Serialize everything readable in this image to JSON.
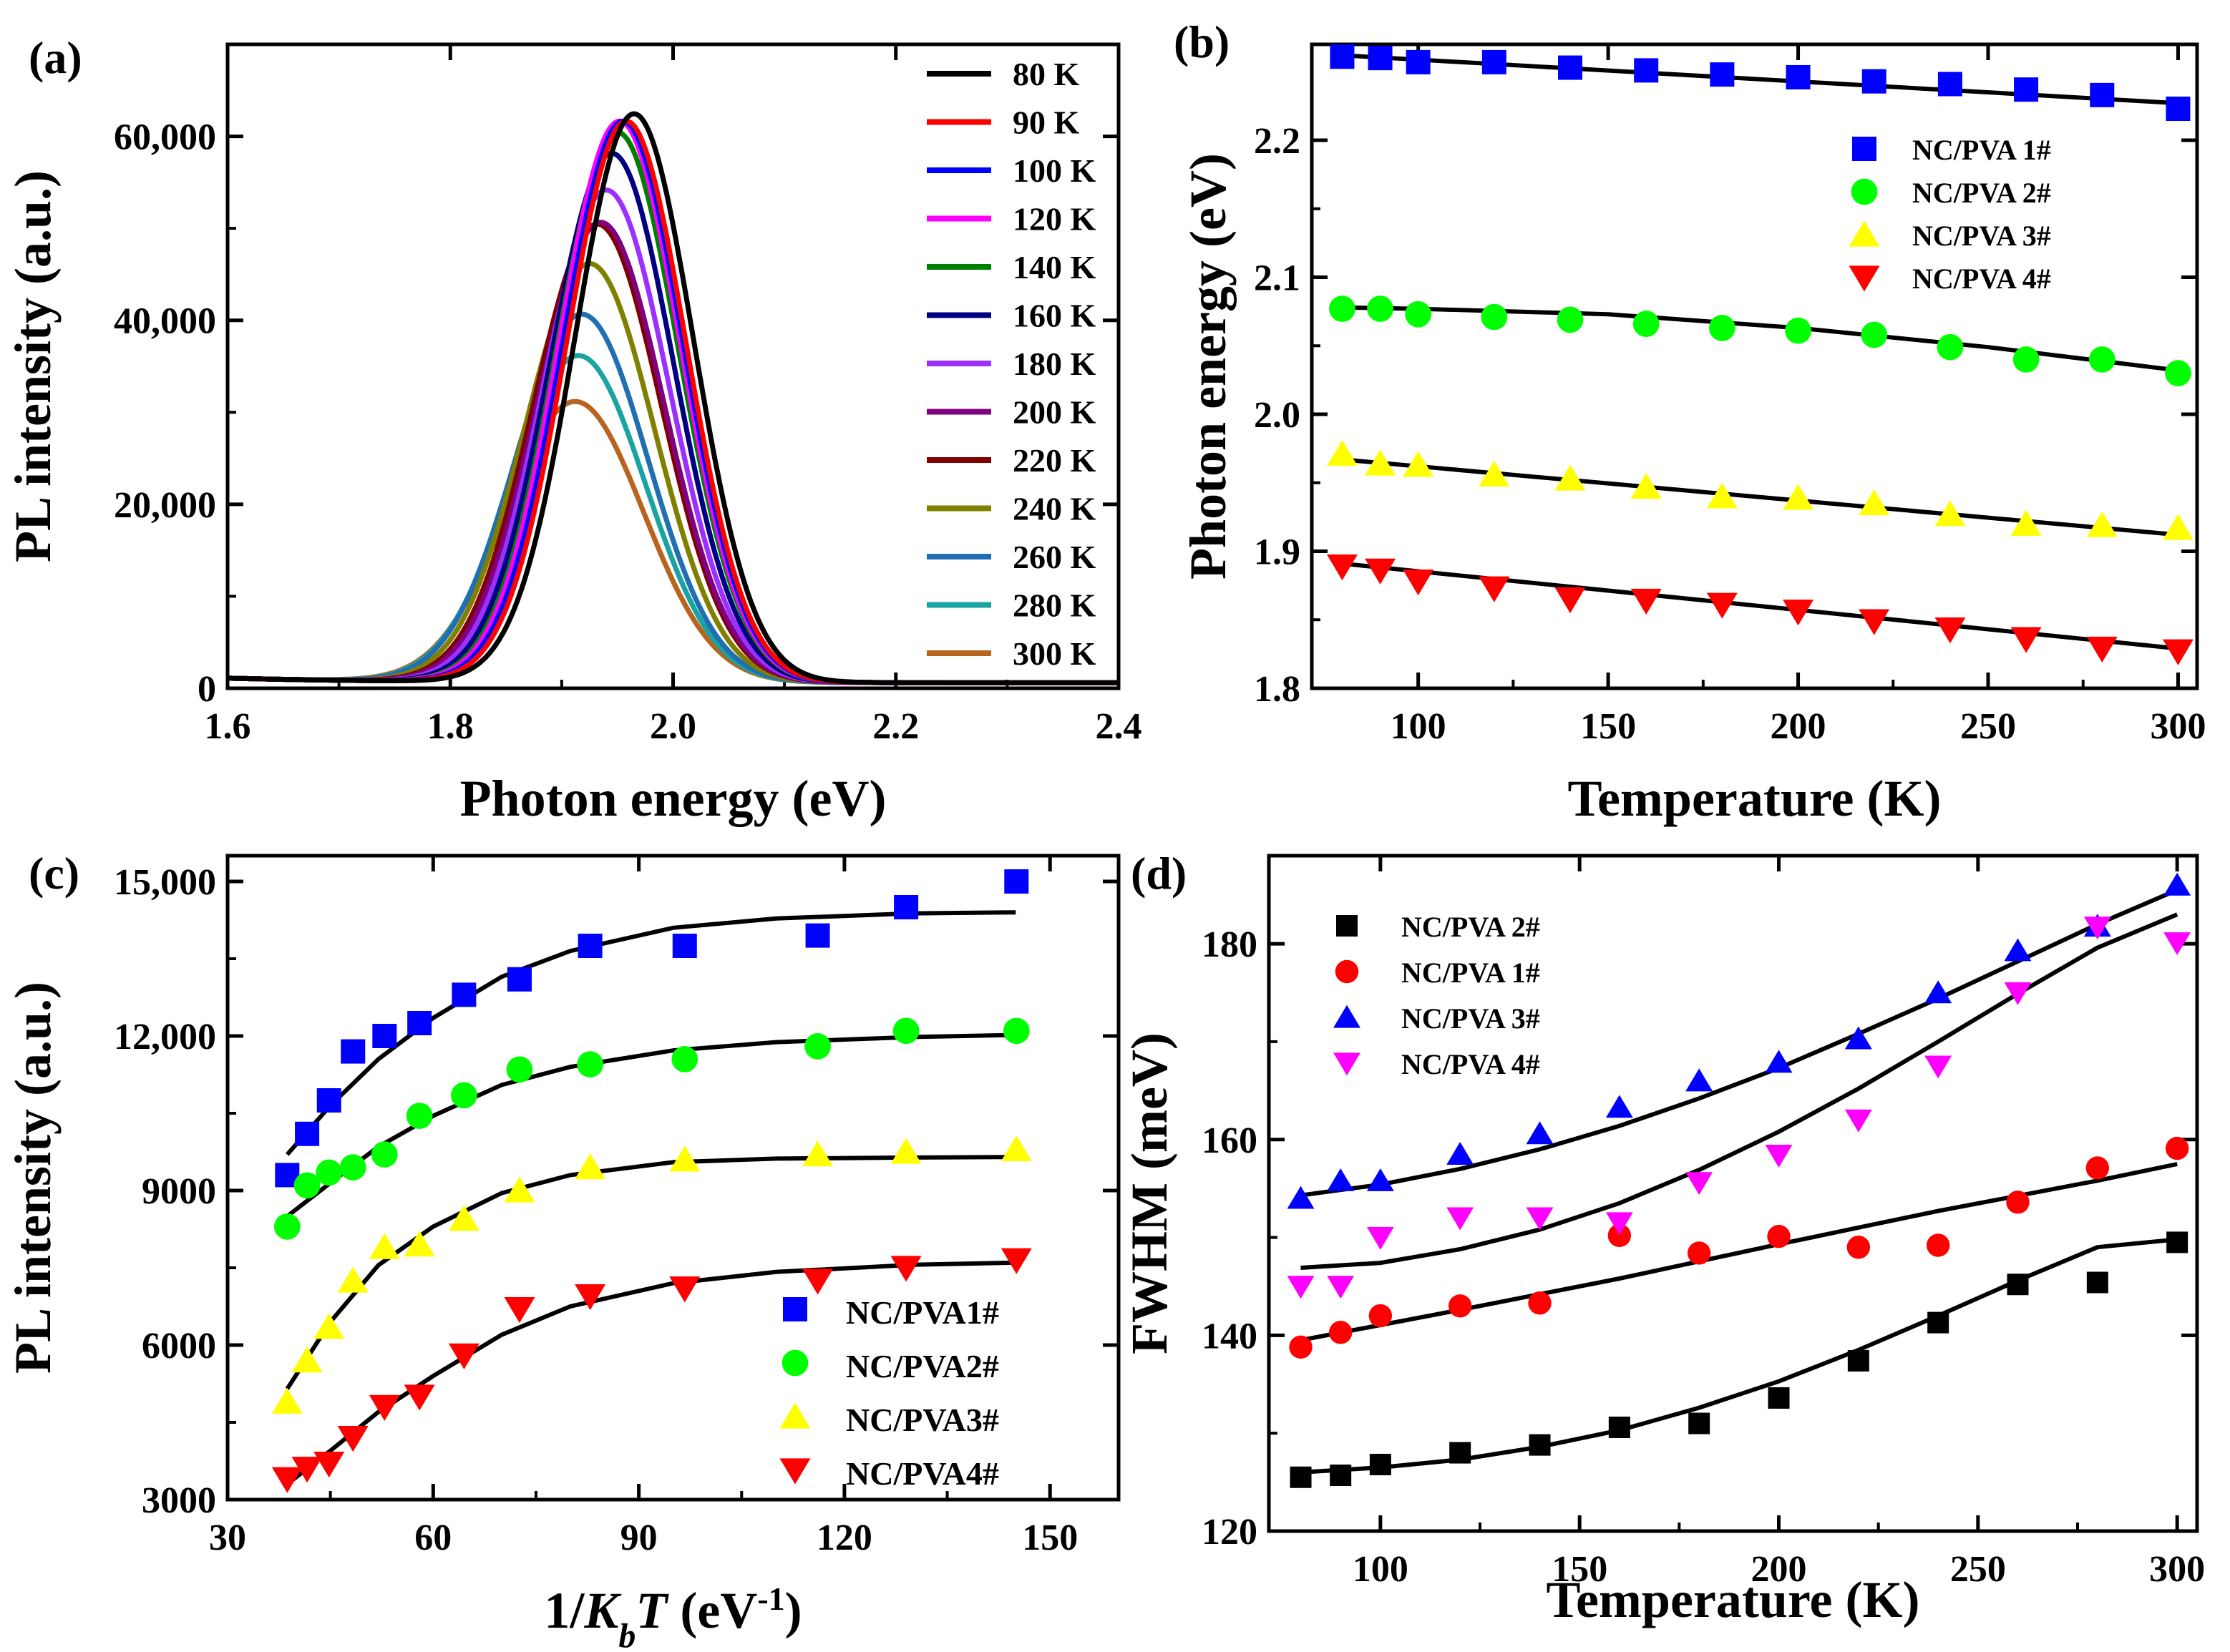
{
  "chart_data": [
    {
      "panel_label": "(a)",
      "type": "line",
      "xlabel": "Photon energy (eV)",
      "ylabel": "PL intensity (a.u.)",
      "xlim": [
        1.6,
        2.4
      ],
      "ylim": [
        0,
        70000
      ],
      "xticks": [
        1.6,
        1.8,
        2.0,
        2.2,
        2.4
      ],
      "xtick_labels": [
        "1.6",
        "1.8",
        "2.0",
        "2.2",
        "2.4"
      ],
      "yticks": [
        0,
        20000,
        40000,
        60000
      ],
      "ytick_labels": [
        "0",
        "20,000",
        "40,000",
        "60,000"
      ],
      "legend_position": "top-right",
      "series": [
        {
          "name": "80 K",
          "color": "#000000",
          "peak_energy": 1.965,
          "peak_intensity": 61800,
          "fwhm": 0.125
        },
        {
          "name": "90 K",
          "color": "#ff0000",
          "peak_energy": 1.958,
          "peak_intensity": 61000,
          "fwhm": 0.126
        },
        {
          "name": "100 K",
          "color": "#0000ff",
          "peak_energy": 1.955,
          "peak_intensity": 61000,
          "fwhm": 0.127
        },
        {
          "name": "120 K",
          "color": "#ff00ff",
          "peak_energy": 1.952,
          "peak_intensity": 61000,
          "fwhm": 0.128
        },
        {
          "name": "140 K",
          "color": "#008000",
          "peak_energy": 1.95,
          "peak_intensity": 59800,
          "fwhm": 0.129
        },
        {
          "name": "160 K",
          "color": "#000080",
          "peak_energy": 1.945,
          "peak_intensity": 57500,
          "fwhm": 0.13
        },
        {
          "name": "180 K",
          "color": "#9b30ff",
          "peak_energy": 1.94,
          "peak_intensity": 53500,
          "fwhm": 0.132
        },
        {
          "name": "200 K",
          "color": "#800080",
          "peak_energy": 1.935,
          "peak_intensity": 50000,
          "fwhm": 0.134
        },
        {
          "name": "220 K",
          "color": "#800000",
          "peak_energy": 1.932,
          "peak_intensity": 49800,
          "fwhm": 0.135
        },
        {
          "name": "240 K",
          "color": "#808000",
          "peak_energy": 1.925,
          "peak_intensity": 45500,
          "fwhm": 0.137
        },
        {
          "name": "260 K",
          "color": "#1f6fb2",
          "peak_energy": 1.918,
          "peak_intensity": 40000,
          "fwhm": 0.14
        },
        {
          "name": "280 K",
          "color": "#1aa3a3",
          "peak_energy": 1.915,
          "peak_intensity": 35500,
          "fwhm": 0.142
        },
        {
          "name": "300 K",
          "color": "#b8641e",
          "peak_energy": 1.912,
          "peak_intensity": 30500,
          "fwhm": 0.145
        }
      ]
    },
    {
      "panel_label": "(b)",
      "type": "scatter",
      "xlabel": "Temperature (K)",
      "ylabel": "Photon energy (eV)",
      "xlim": [
        72,
        305
      ],
      "ylim": [
        1.8,
        2.27
      ],
      "xticks": [
        100,
        150,
        200,
        250,
        300
      ],
      "xtick_labels": [
        "100",
        "150",
        "200",
        "250",
        "300"
      ],
      "yticks": [
        1.8,
        1.9,
        2.0,
        2.1,
        2.2
      ],
      "ytick_labels": [
        "1.8",
        "1.9",
        "2.0",
        "2.1",
        "2.2"
      ],
      "legend_position": "top-right",
      "x": [
        80,
        90,
        100,
        120,
        140,
        160,
        180,
        200,
        220,
        240,
        260,
        280,
        300
      ],
      "series": [
        {
          "name": "NC/PVA 1#",
          "marker": "square",
          "color": "#0000ff",
          "values": [
            2.261,
            2.26,
            2.257,
            2.257,
            2.253,
            2.251,
            2.248,
            2.246,
            2.243,
            2.241,
            2.237,
            2.233,
            2.223
          ],
          "fit": [
            [
              80,
              2.262
            ],
            [
              300,
              2.227
            ]
          ]
        },
        {
          "name": "NC/PVA 2#",
          "marker": "circle",
          "color": "#00ff00",
          "values": [
            2.077,
            2.077,
            2.073,
            2.071,
            2.069,
            2.066,
            2.063,
            2.061,
            2.058,
            2.049,
            2.04,
            2.04,
            2.03
          ],
          "fit": [
            [
              80,
              2.078
            ],
            [
              100,
              2.077
            ],
            [
              150,
              2.073
            ],
            [
              200,
              2.063
            ],
            [
              250,
              2.049
            ],
            [
              300,
              2.032
            ]
          ]
        },
        {
          "name": "NC/PVA 3#",
          "marker": "triangle-up",
          "color": "#ffff00",
          "values": [
            1.971,
            1.964,
            1.963,
            1.956,
            1.953,
            1.947,
            1.94,
            1.939,
            1.935,
            1.927,
            1.92,
            1.919,
            1.917
          ],
          "fit": [
            [
              80,
              1.967
            ],
            [
              300,
              1.912
            ]
          ]
        },
        {
          "name": "NC/PVA 4#",
          "marker": "triangle-down",
          "color": "#ff0000",
          "values": [
            1.889,
            1.886,
            1.878,
            1.873,
            1.865,
            1.864,
            1.861,
            1.856,
            1.849,
            1.843,
            1.836,
            1.829,
            1.827
          ],
          "fit": [
            [
              80,
              1.891
            ],
            [
              300,
              1.829
            ]
          ]
        }
      ]
    },
    {
      "panel_label": "(c)",
      "type": "scatter",
      "xlabel": "1/K_bT (eV^-1)",
      "ylabel": "PL intensity (a.u.)",
      "xlim": [
        30,
        160
      ],
      "ylim": [
        3000,
        15500
      ],
      "xticks": [
        30,
        60,
        90,
        120,
        150
      ],
      "xtick_labels": [
        "30",
        "60",
        "90",
        "120",
        "150"
      ],
      "yticks": [
        3000,
        6000,
        9000,
        12000,
        15000
      ],
      "ytick_labels": [
        "3000",
        "6000",
        "9000",
        "12,000",
        "15,000"
      ],
      "legend_position": "bottom-right",
      "x": [
        38.7,
        41.6,
        44.8,
        48.3,
        52.9,
        58.0,
        64.5,
        72.6,
        82.9,
        96.7,
        116.1,
        129.0,
        145.1
      ],
      "series": [
        {
          "name": "NC/PVA1#",
          "marker": "square",
          "color": "#0000ff",
          "values": [
            9300,
            10100,
            10750,
            11700,
            12000,
            12250,
            12800,
            13100,
            13750,
            13750,
            13950,
            14500,
            15000
          ],
          "fit": [
            [
              38.7,
              9700
            ],
            [
              45,
              10650
            ],
            [
              52,
              11550
            ],
            [
              60,
              12350
            ],
            [
              70,
              13150
            ],
            [
              80,
              13650
            ],
            [
              95,
              14100
            ],
            [
              110,
              14280
            ],
            [
              130,
              14380
            ],
            [
              145,
              14400
            ]
          ]
        },
        {
          "name": "NC/PVA2#",
          "marker": "circle",
          "color": "#00ff00",
          "values": [
            8300,
            9100,
            9350,
            9450,
            9700,
            10450,
            10850,
            11350,
            11450,
            11550,
            11800,
            12100,
            12100
          ],
          "fit": [
            [
              38.7,
              8500
            ],
            [
              45,
              9150
            ],
            [
              52,
              9850
            ],
            [
              60,
              10450
            ],
            [
              70,
              11050
            ],
            [
              80,
              11400
            ],
            [
              95,
              11720
            ],
            [
              110,
              11880
            ],
            [
              130,
              11980
            ],
            [
              145,
              12020
            ]
          ]
        },
        {
          "name": "NC/PVA3#",
          "marker": "triangle-up",
          "color": "#ffff00",
          "values": [
            4900,
            5700,
            6350,
            7250,
            7900,
            7950,
            8450,
            9000,
            9450,
            9600,
            9700,
            9750,
            9800
          ],
          "fit": [
            [
              38.7,
              5150
            ],
            [
              45,
              6450
            ],
            [
              52,
              7550
            ],
            [
              60,
              8300
            ],
            [
              70,
              8950
            ],
            [
              80,
              9300
            ],
            [
              95,
              9550
            ],
            [
              110,
              9620
            ],
            [
              130,
              9640
            ],
            [
              145,
              9650
            ]
          ]
        },
        {
          "name": "NC/PVA4#",
          "marker": "triangle-down",
          "color": "#ff0000",
          "values": [
            3400,
            3600,
            3700,
            4200,
            4800,
            5000,
            5800,
            6700,
            6950,
            7100,
            7250,
            7500,
            7650
          ],
          "fit": [
            [
              38.7,
              3300
            ],
            [
              45,
              3950
            ],
            [
              52,
              4700
            ],
            [
              60,
              5400
            ],
            [
              70,
              6200
            ],
            [
              80,
              6750
            ],
            [
              95,
              7200
            ],
            [
              110,
              7420
            ],
            [
              130,
              7560
            ],
            [
              145,
              7600
            ]
          ]
        }
      ]
    },
    {
      "panel_label": "(d)",
      "type": "scatter",
      "xlabel": "Temperature (K)",
      "ylabel": "FWHM (meV)",
      "xlim": [
        72,
        305
      ],
      "ylim": [
        120,
        189
      ],
      "xticks": [
        100,
        150,
        200,
        250,
        300
      ],
      "xtick_labels": [
        "100",
        "150",
        "200",
        "250",
        "300"
      ],
      "yticks": [
        120,
        140,
        160,
        180
      ],
      "ytick_labels": [
        "120",
        "140",
        "160",
        "180"
      ],
      "legend_position": "top-left",
      "x": [
        80,
        90,
        100,
        120,
        140,
        160,
        180,
        200,
        220,
        240,
        260,
        280,
        300
      ],
      "series": [
        {
          "name": "NC/PVA 2#",
          "marker": "square",
          "color": "#000000",
          "values": [
            125.5,
            125.7,
            126.8,
            128.0,
            128.8,
            130.6,
            131.0,
            133.6,
            137.4,
            141.3,
            145.2,
            145.4,
            149.5
          ],
          "fit": [
            [
              80,
              126.0
            ],
            [
              100,
              126.5
            ],
            [
              120,
              127.3
            ],
            [
              140,
              128.6
            ],
            [
              160,
              130.3
            ],
            [
              180,
              132.6
            ],
            [
              200,
              135.3
            ],
            [
              220,
              138.5
            ],
            [
              240,
              142.0
            ],
            [
              260,
              145.6
            ],
            [
              280,
              149.0
            ],
            [
              300,
              149.8
            ]
          ]
        },
        {
          "name": "NC/PVA 1#",
          "marker": "circle",
          "color": "#ff0000",
          "values": [
            138.8,
            140.3,
            142.0,
            143.0,
            143.3,
            150.2,
            148.4,
            150.1,
            149.0,
            149.2,
            153.6,
            157.1,
            159.1
          ],
          "fit": [
            [
              80,
              139.5
            ],
            [
              120,
              142.6
            ],
            [
              160,
              145.8
            ],
            [
              200,
              149.3
            ],
            [
              240,
              152.7
            ],
            [
              280,
              155.8
            ],
            [
              300,
              157.5
            ]
          ]
        },
        {
          "name": "NC/PVA 3#",
          "marker": "triangle-up",
          "color": "#0000ff",
          "values": [
            154.0,
            155.8,
            155.8,
            158.5,
            160.6,
            163.3,
            166.0,
            167.9,
            170.3,
            175.0,
            179.3,
            181.8,
            186.0
          ],
          "fit": [
            [
              80,
              154.3
            ],
            [
              100,
              155.4
            ],
            [
              120,
              157.0
            ],
            [
              140,
              159.0
            ],
            [
              160,
              161.4
            ],
            [
              180,
              164.2
            ],
            [
              200,
              167.3
            ],
            [
              220,
              170.8
            ],
            [
              240,
              174.4
            ],
            [
              260,
              178.2
            ],
            [
              280,
              182.0
            ],
            [
              300,
              185.5
            ]
          ]
        },
        {
          "name": "NC/PVA 4#",
          "marker": "triangle-down",
          "color": "#ff00ff",
          "values": [
            145.0,
            145.0,
            150.0,
            152.0,
            152.0,
            151.5,
            155.6,
            158.4,
            162.0,
            167.5,
            175.0,
            181.7,
            180.1
          ],
          "fit": [
            [
              80,
              146.9
            ],
            [
              100,
              147.4
            ],
            [
              120,
              148.8
            ],
            [
              140,
              150.8
            ],
            [
              160,
              153.5
            ],
            [
              180,
              156.9
            ],
            [
              200,
              160.8
            ],
            [
              220,
              165.2
            ],
            [
              240,
              170.0
            ],
            [
              260,
              174.9
            ],
            [
              280,
              179.6
            ],
            [
              300,
              183.0
            ]
          ]
        }
      ]
    }
  ]
}
